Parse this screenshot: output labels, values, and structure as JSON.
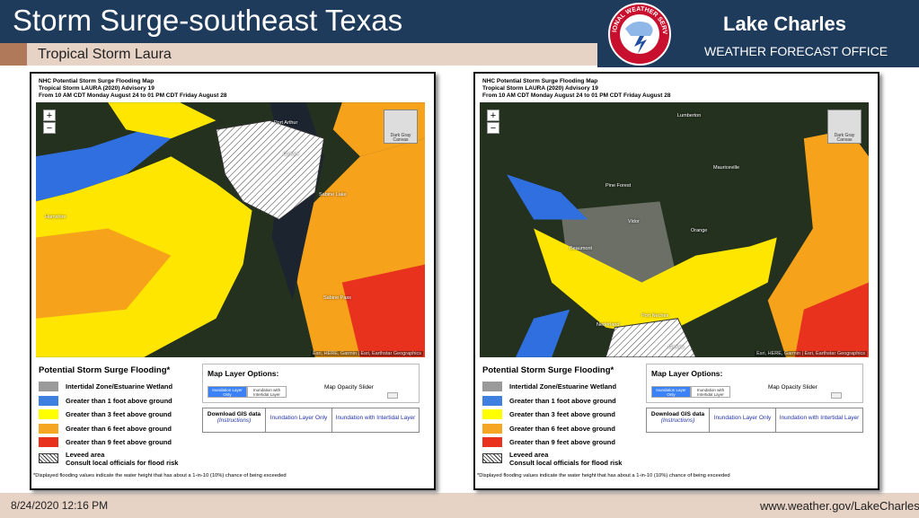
{
  "header": {
    "title": "Storm Surge-southeast Texas",
    "subtitle": "Tropical Storm Laura",
    "logo_text": "NATIONAL WEATHER SERVICE",
    "office": "Lake Charles",
    "office_type": "WEATHER FORECAST OFFICE"
  },
  "panels": [
    {
      "map_title": [
        "NHC Potential Storm Surge Flooding Map",
        "Tropical Storm LAURA (2020) Advisory 19",
        "From 10 AM CDT Monday August 24 to 01 PM CDT Friday August 28"
      ],
      "zoom_in": "+",
      "zoom_out": "−",
      "basemap_button": "Dark Gray Canvas",
      "attribution": "Esri, HERE, Garmin | Esri, Earthstar Geographics",
      "place_labels": [
        "Port Arthur",
        "Groves",
        "Hamshire",
        "Sabine Lake",
        "Sabine Pass"
      ],
      "legend": {
        "title": "Potential Storm Surge Flooding*",
        "items": [
          "Intertidal Zone/Estuarine Wetland",
          "Greater than 1 foot above ground",
          "Greater than 3 feet above ground",
          "Greater than 6 feet above ground",
          "Greater than 9 feet above ground"
        ],
        "leveed_label": "Leveed area",
        "leveed_note": "Consult local officials for flood risk"
      },
      "layer_options": {
        "title": "Map Layer Options:",
        "buttons": [
          "Inundation Layer Only",
          "Inundation with Intertidal Layer"
        ],
        "slider_label": "Map Opacity Slider"
      },
      "downloads": {
        "label": "Download GIS data",
        "instructions": "(Instructions)",
        "links": [
          "Inundation Layer Only",
          "Inundation with Intertidal Layer"
        ]
      },
      "footnote": "*Displayed flooding values indicate the water height that has about a 1-in-10 (10%) chance of being exceeded"
    },
    {
      "map_title": [
        "NHC Potential Storm Surge Flooding Map",
        "Tropical Storm LAURA (2020) Advisory 19",
        "From 10 AM CDT Monday August 24 to 01 PM CDT Friday August 28"
      ],
      "zoom_in": "+",
      "zoom_out": "−",
      "basemap_button": "Dark Gray Canvas",
      "attribution": "Esri, HERE, Garmin | Esri, Earthstar Geographics",
      "place_labels": [
        "Lumberton",
        "Pine Forest",
        "Vidor",
        "Orange",
        "Mauriceville",
        "Beaumont",
        "Nederland",
        "Port Neches",
        "Groves"
      ],
      "legend": {
        "title": "Potential Storm Surge Flooding*",
        "items": [
          "Intertidal Zone/Estuarine Wetland",
          "Greater than 1 foot above ground",
          "Greater than 3 feet above ground",
          "Greater than 6 feet above ground",
          "Greater than 9 feet above ground"
        ],
        "leveed_label": "Leveed area",
        "leveed_note": "Consult local officials for flood risk"
      },
      "layer_options": {
        "title": "Map Layer Options:",
        "buttons": [
          "Inundation Layer Only",
          "Inundation with Intertidal Layer"
        ],
        "slider_label": "Map Opacity Slider"
      },
      "downloads": {
        "label": "Download GIS data",
        "instructions": "(Instructions)",
        "links": [
          "Inundation Layer Only",
          "Inundation with Intertidal Layer"
        ]
      },
      "footnote": "*Displayed flooding values indicate the water height that has about a 1-in-10 (10%) chance of being exceeded"
    }
  ],
  "footer": {
    "date": "8/24/2020 12:16 PM",
    "url": "www.weather.gov/LakeCharles"
  }
}
